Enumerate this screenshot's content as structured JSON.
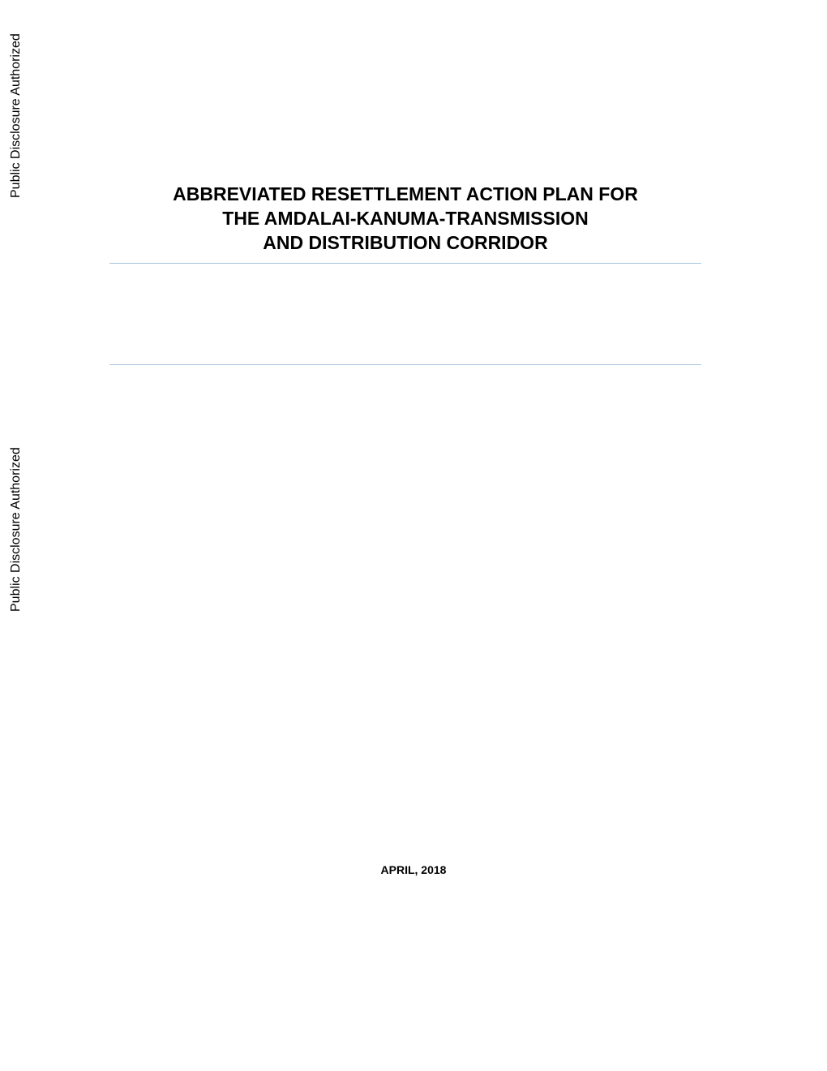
{
  "sidebar": {
    "disclosure_text_1": "Public Disclosure Authorized",
    "disclosure_text_2": "Public Disclosure Authorized"
  },
  "title": {
    "line1": "ABBREVIATED RESETTLEMENT ACTION PLAN FOR",
    "line2": "THE AMDALAI-KANUMA-TRANSMISSION",
    "line3": "AND DISTRIBUTION CORRIDOR"
  },
  "date": "APRIL, 2018",
  "colors": {
    "background": "#ffffff",
    "text": "#000000",
    "hr_line": "#a8c4de"
  },
  "typography": {
    "title_fontsize": 23,
    "title_fontweight": "bold",
    "sidebar_fontsize": 16,
    "date_fontsize": 14,
    "date_fontweight": "bold"
  }
}
